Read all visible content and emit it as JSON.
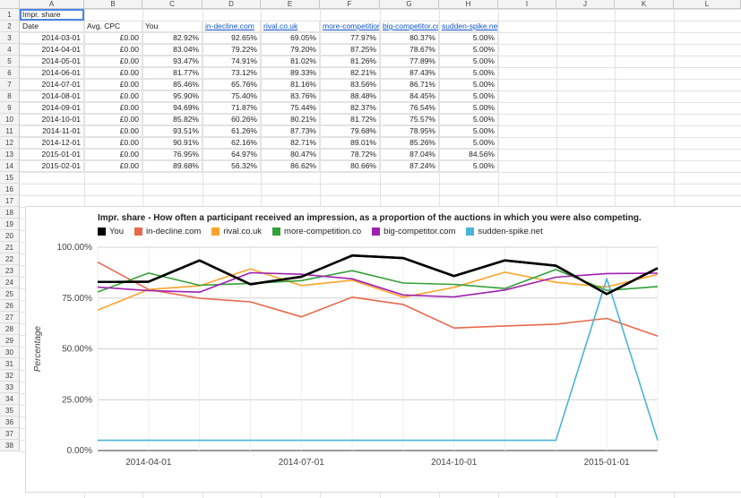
{
  "columns": [
    "A",
    "B",
    "C",
    "D",
    "E",
    "F",
    "G",
    "H",
    "I",
    "J",
    "K",
    "L"
  ],
  "rows": [
    "1",
    "2",
    "3",
    "4",
    "5",
    "6",
    "7",
    "8",
    "9",
    "10",
    "11",
    "12",
    "13",
    "14",
    "15",
    "16",
    "17",
    "18",
    "19",
    "20",
    "21",
    "22",
    "23",
    "24",
    "25",
    "26",
    "27",
    "28",
    "29",
    "30",
    "31",
    "32",
    "33",
    "34",
    "35",
    "36",
    "37",
    "38"
  ],
  "table": {
    "a1": "Impr. share",
    "headers": [
      "Date",
      "Avg. CPC",
      "You",
      "in-decline.com",
      "rival.co.uk",
      "more-competition",
      "big-competitor.co",
      "sudden-spike.net"
    ],
    "rows": [
      [
        "2014-03-01",
        "£0.00",
        "82.92%",
        "92.65%",
        "69.05%",
        "77.97%",
        "80.37%",
        "5.00%"
      ],
      [
        "2014-04-01",
        "£0.00",
        "83.04%",
        "79.22%",
        "79.20%",
        "87.25%",
        "78.67%",
        "5.00%"
      ],
      [
        "2014-05-01",
        "£0.00",
        "93.47%",
        "74.91%",
        "81.02%",
        "81.26%",
        "77.89%",
        "5.00%"
      ],
      [
        "2014-06-01",
        "£0.00",
        "81.77%",
        "73.12%",
        "89.33%",
        "82.21%",
        "87.43%",
        "5.00%"
      ],
      [
        "2014-07-01",
        "£0.00",
        "85.46%",
        "65.76%",
        "81.16%",
        "83.56%",
        "86.71%",
        "5.00%"
      ],
      [
        "2014-08-01",
        "£0.00",
        "95.90%",
        "75.40%",
        "83.76%",
        "88.48%",
        "84.45%",
        "5.00%"
      ],
      [
        "2014-09-01",
        "£0.00",
        "94.69%",
        "71.87%",
        "75.44%",
        "82.37%",
        "76.54%",
        "5.00%"
      ],
      [
        "2014-10-01",
        "£0.00",
        "85.82%",
        "60.26%",
        "80.21%",
        "81.72%",
        "75.57%",
        "5.00%"
      ],
      [
        "2014-11-01",
        "£0.00",
        "93.51%",
        "61.26%",
        "87.73%",
        "79.68%",
        "78.95%",
        "5.00%"
      ],
      [
        "2014-12-01",
        "£0.00",
        "90.91%",
        "62.16%",
        "82.71%",
        "89.01%",
        "85.26%",
        "5.00%"
      ],
      [
        "2015-01-01",
        "£0.00",
        "76.95%",
        "64.97%",
        "80.47%",
        "78.72%",
        "87.04%",
        "84.56%"
      ],
      [
        "2015-02-01",
        "£0.00",
        "89.68%",
        "56.32%",
        "86.62%",
        "80.66%",
        "87.24%",
        "5.00%"
      ]
    ]
  },
  "chart_data": {
    "type": "line",
    "title": "Impr. share - How often a participant received an impression, as a proportion of the auctions in which you were also competing.",
    "ylabel": "Percentage",
    "xlabel": "",
    "x": [
      "2014-03-01",
      "2014-04-01",
      "2014-05-01",
      "2014-06-01",
      "2014-07-01",
      "2014-08-01",
      "2014-09-01",
      "2014-10-01",
      "2014-11-01",
      "2014-12-01",
      "2015-01-01",
      "2015-02-01"
    ],
    "x_tick_labels": [
      "2014-04-01",
      "2014-07-01",
      "2014-10-01",
      "2015-01-01"
    ],
    "y_tick_labels": [
      "0.00%",
      "25.00%",
      "50.00%",
      "75.00%",
      "100.00%"
    ],
    "ylim": [
      0,
      100
    ],
    "grid": true,
    "legend_position": "top",
    "series": [
      {
        "name": "You",
        "color": "#000000",
        "values": [
          82.92,
          83.04,
          93.47,
          81.77,
          85.46,
          95.9,
          94.69,
          85.82,
          93.51,
          90.91,
          76.95,
          89.68
        ]
      },
      {
        "name": "in-decline.com",
        "color": "#e8694a",
        "values": [
          92.65,
          79.22,
          74.91,
          73.12,
          65.76,
          75.4,
          71.87,
          60.26,
          61.26,
          62.16,
          64.97,
          56.32
        ]
      },
      {
        "name": "rival.co.uk",
        "color": "#fca32a",
        "values": [
          69.05,
          79.2,
          81.02,
          89.33,
          81.16,
          83.76,
          75.44,
          80.21,
          87.73,
          82.71,
          80.47,
          86.62
        ]
      },
      {
        "name": "more-competition.co",
        "color": "#34a038",
        "values": [
          77.97,
          87.25,
          81.26,
          82.21,
          83.56,
          88.48,
          82.37,
          81.72,
          79.68,
          89.01,
          78.72,
          80.66
        ]
      },
      {
        "name": "big-competitor.com",
        "color": "#a020b0",
        "values": [
          80.37,
          78.67,
          77.89,
          87.43,
          86.71,
          84.45,
          76.54,
          75.57,
          78.95,
          85.26,
          87.04,
          87.24
        ]
      },
      {
        "name": "sudden-spike.net",
        "color": "#4ab4d8",
        "values": [
          5.0,
          5.0,
          5.0,
          5.0,
          5.0,
          5.0,
          5.0,
          5.0,
          5.0,
          5.0,
          84.56,
          5.0
        ]
      }
    ]
  }
}
